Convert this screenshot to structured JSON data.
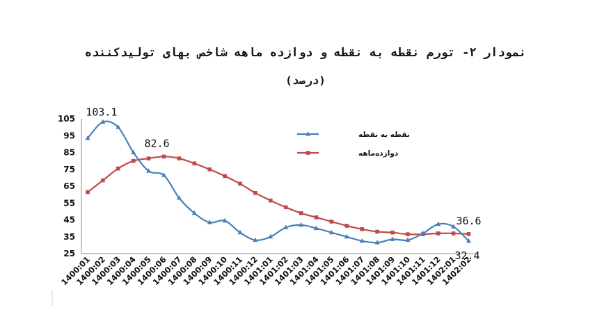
{
  "chart_data": {
    "type": "line",
    "title": "نمودار ۲- تورم نقطه به نقطه و دوازده ماهه شاخص بهای تولیدکننده",
    "subtitle": "(درصد)",
    "xlabel": "",
    "ylabel": "",
    "ylim": [
      25,
      105
    ],
    "yticks": [
      25,
      35,
      45,
      55,
      65,
      75,
      85,
      95,
      105
    ],
    "grid": false,
    "legend": "top-right",
    "categories": [
      "1400:01",
      "1400:02",
      "1400:03",
      "1400:04",
      "1400:05",
      "1400:06",
      "1400:07",
      "1400:08",
      "1400:09",
      "1400:10",
      "1400:11",
      "1400:12",
      "1401:01",
      "1401:02",
      "1401:03",
      "1401:04",
      "1401:05",
      "1401:06",
      "1401:07",
      "1401:08",
      "1401:09",
      "1401:10",
      "1401:11",
      "1401:12",
      "1402:01",
      "1402:02"
    ],
    "series": [
      {
        "name": "نقطه به نقطه",
        "color": "#4a7ebb",
        "marker": "triangle",
        "values": [
          93.5,
          103.1,
          100,
          85,
          74,
          71.5,
          58,
          49,
          43.5,
          44.5,
          37.5,
          33,
          35,
          40.5,
          42,
          40,
          37.5,
          35,
          32.5,
          31.5,
          33.5,
          33,
          37,
          42.5,
          41,
          32.4
        ]
      },
      {
        "name": "دوازده‌ماهه",
        "color": "#be4b48",
        "marker": "square",
        "values": [
          61.5,
          68.5,
          75.5,
          80,
          81.5,
          82.6,
          81.5,
          78.5,
          75,
          71,
          66.5,
          61,
          56.5,
          52.5,
          49,
          46.5,
          44,
          41.5,
          39.5,
          38,
          37.5,
          36.5,
          36.5,
          37,
          37,
          36.6
        ]
      }
    ],
    "annotations": [
      {
        "series": 0,
        "index": 1,
        "text": "103.1"
      },
      {
        "series": 1,
        "index": 5,
        "text": "82.6"
      },
      {
        "series": 1,
        "index": 25,
        "text": "36.6"
      },
      {
        "series": 0,
        "index": 25,
        "text": "32.4"
      }
    ]
  }
}
